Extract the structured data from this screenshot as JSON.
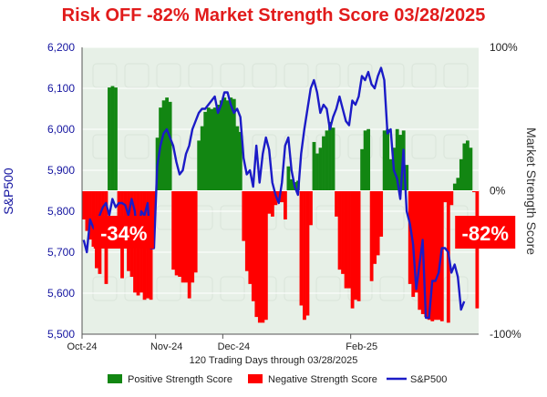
{
  "chart_data": {
    "type": "bar",
    "title": "Risk OFF -82% Market Strength Score 03/28/2025",
    "xlabel": "120 Trading Days through 03/28/2025",
    "ylabel_left": "S&P500",
    "ylabel_right": "Market Strength Score",
    "y_left_ticks": [
      "5,500",
      "5,600",
      "5,700",
      "5,800",
      "5,900",
      "6,000",
      "6,100",
      "6,200"
    ],
    "y_left_range": [
      5500,
      6200
    ],
    "y_right_ticks": [
      "100%",
      "0%",
      "-100%"
    ],
    "y_right_range": [
      -100,
      100
    ],
    "x_ticks": [
      {
        "label": "Oct-24",
        "index": 0
      },
      {
        "label": "Nov-24",
        "index": 23
      },
      {
        "label": "Dec-24",
        "index": 44
      },
      {
        "label": "Feb-25",
        "index": 84
      }
    ],
    "callouts": [
      {
        "text": "-34%",
        "index": 6
      },
      {
        "text": "-82%",
        "index": 119
      }
    ],
    "legend": [
      "Positive Strength Score",
      "Negative Strength Score",
      "S&P500"
    ],
    "legend_position": "bottom",
    "grid": true,
    "colors": {
      "title": "#e11b1b",
      "positive": "#128612",
      "negative": "#ff0000",
      "line": "#1b1bc7",
      "axis": "#1414a0",
      "callout": "#ff0000"
    },
    "strength_score": [
      -20,
      -28,
      -34,
      -39,
      -54,
      -58,
      -34,
      -65,
      72,
      73,
      72,
      -20,
      -61,
      -31,
      -56,
      -60,
      -71,
      -73,
      -71,
      -76,
      -75,
      -76,
      -26,
      37,
      58,
      63,
      65,
      62,
      -55,
      -59,
      -60,
      -64,
      -64,
      -75,
      -64,
      -57,
      35,
      45,
      55,
      58,
      57,
      58,
      60,
      63,
      65,
      63,
      65,
      64,
      45,
      41,
      -35,
      -56,
      -65,
      -77,
      -88,
      -92,
      -92,
      -90,
      -16,
      -18,
      -10,
      -8,
      -8,
      -20,
      17,
      8,
      6,
      7,
      -80,
      -90,
      -87,
      -24,
      34,
      26,
      30,
      38,
      42,
      48,
      44,
      -18,
      -55,
      -58,
      -68,
      -68,
      -82,
      -76,
      -77,
      29,
      42,
      43,
      -63,
      -51,
      -45,
      -32,
      42,
      43,
      22,
      30,
      43,
      39,
      42,
      18,
      -65,
      -74,
      -71,
      -83,
      -86,
      -88,
      -90,
      -91,
      -90,
      -90,
      -91,
      -8,
      -92,
      -10,
      5,
      9,
      22,
      33,
      35,
      30,
      -1,
      -82
    ],
    "sp500": [
      5730,
      5700,
      5780,
      5760,
      5750,
      5790,
      5810,
      5820,
      5790,
      5830,
      5810,
      5820,
      5820,
      5815,
      5790,
      5830,
      5800,
      5720,
      5800,
      5790,
      5820,
      5710,
      5710,
      5910,
      5960,
      5990,
      6000,
      5980,
      5960,
      5920,
      5890,
      5900,
      5940,
      5960,
      6000,
      6020,
      6040,
      6050,
      6050,
      6060,
      6070,
      6080,
      6040,
      6060,
      6090,
      6090,
      6060,
      6040,
      6050,
      6030,
      5930,
      5890,
      5900,
      5860,
      5960,
      5870,
      5940,
      5980,
      5950,
      5870,
      5840,
      5820,
      5870,
      5960,
      5980,
      5900,
      5860,
      5840,
      5940,
      6000,
      6050,
      6100,
      6120,
      6090,
      6040,
      6060,
      6050,
      6000,
      6030,
      6050,
      6080,
      6050,
      6020,
      6010,
      6070,
      6060,
      6080,
      6130,
      6120,
      6140,
      6110,
      6100,
      6130,
      6150,
      6120,
      5990,
      6000,
      5900,
      5880,
      5830,
      5950,
      5800,
      5770,
      5720,
      5610,
      5670,
      5730,
      5540,
      5540,
      5630,
      5630,
      5650,
      5710,
      5710,
      5700,
      5650,
      5670,
      5640,
      5560,
      5580
    ]
  }
}
